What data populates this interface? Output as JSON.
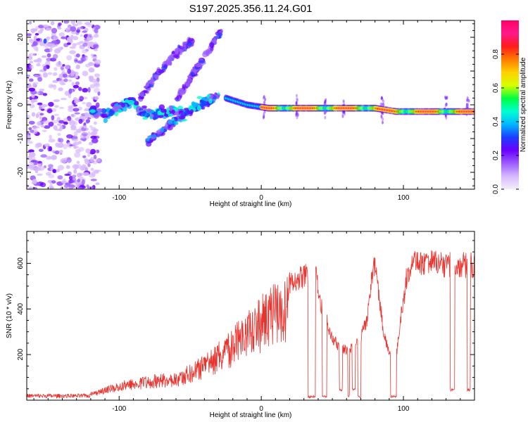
{
  "title": "S197.2025.356.11.24.G01",
  "chart_data": [
    {
      "type": "heatmap",
      "name": "spectrogram",
      "xlabel": "Height of straight line (km)",
      "ylabel": "Frequency (Hz)",
      "xlim": [
        -165,
        150
      ],
      "ylim": [
        -25,
        25
      ],
      "xticks": [
        -100,
        0,
        100
      ],
      "xtick_labels": [
        "-100",
        "0",
        "100"
      ],
      "yticks": [
        -20,
        -10,
        0,
        10,
        20
      ],
      "ytick_labels": [
        "-20",
        "-10",
        "0",
        "10",
        "20"
      ],
      "colorbar": {
        "label": "Normalized spectral amplitude",
        "range": [
          0,
          1
        ],
        "ticks": [
          0,
          0.2,
          0.4,
          0.6,
          0.8
        ],
        "tick_labels": [
          "0.0",
          "0.2",
          "0.4",
          "0.6",
          "0.8"
        ],
        "colors": [
          "#f3eefb",
          "#d7b8ff",
          "#9b5cff",
          "#6a00ff",
          "#1b3dff",
          "#00b8ff",
          "#00ffd0",
          "#00ff40",
          "#d8ff00",
          "#ffd000",
          "#ff7a00",
          "#ff1a1a",
          "#ff1a8c",
          "#ff0066"
        ]
      },
      "features": {
        "noise_region_x": [
          -165,
          -120
        ],
        "carrier_line": [
          [
            -25,
            2
          ],
          [
            -10,
            0
          ],
          [
            5,
            -1
          ],
          [
            20,
            -1
          ],
          [
            40,
            -1
          ],
          [
            60,
            -1
          ],
          [
            80,
            -1
          ],
          [
            95,
            -2
          ],
          [
            110,
            -2
          ],
          [
            130,
            -2
          ],
          [
            150,
            -2
          ]
        ],
        "scintillation_band": [
          [
            -120,
            -2
          ],
          [
            -110,
            -3
          ],
          [
            -100,
            -1
          ],
          [
            -90,
            1
          ],
          [
            -85,
            -2
          ],
          [
            -75,
            -3
          ],
          [
            -65,
            -2
          ],
          [
            -55,
            -3
          ],
          [
            -45,
            0
          ],
          [
            -35,
            2
          ]
        ],
        "rising_tracks": [
          [
            [
              -80,
              -11
            ],
            [
              -65,
              -6
            ],
            [
              -50,
              -2
            ],
            [
              -40,
              0
            ],
            [
              -30,
              3
            ]
          ],
          [
            [
              -85,
              2
            ],
            [
              -75,
              8
            ],
            [
              -65,
              13
            ],
            [
              -55,
              17
            ],
            [
              -48,
              19
            ]
          ],
          [
            [
              -60,
              1
            ],
            [
              -50,
              8
            ],
            [
              -40,
              14
            ],
            [
              -33,
              19
            ],
            [
              -28,
              22
            ]
          ]
        ],
        "vertical_streaks_x": [
          2,
          25,
          45,
          58,
          85,
          130,
          145
        ]
      }
    },
    {
      "type": "line",
      "name": "snr",
      "xlabel": "Height of straight line (km)",
      "ylabel": "SNR (10 * v/v)",
      "xlim": [
        -165,
        150
      ],
      "ylim": [
        0,
        740
      ],
      "xticks": [
        -100,
        0,
        100
      ],
      "xtick_labels": [
        "-100",
        "0",
        "100"
      ],
      "yticks": [
        200,
        400,
        600
      ],
      "ytick_labels": [
        "200",
        "400",
        "600"
      ],
      "color": "#e8332e",
      "envelope": [
        [
          -165,
          15
        ],
        [
          -150,
          15
        ],
        [
          -135,
          18
        ],
        [
          -125,
          25
        ],
        [
          -115,
          45
        ],
        [
          -105,
          70
        ],
        [
          -95,
          90
        ],
        [
          -85,
          105
        ],
        [
          -75,
          115
        ],
        [
          -65,
          120
        ],
        [
          -55,
          140
        ],
        [
          -45,
          180
        ],
        [
          -35,
          235
        ],
        [
          -25,
          290
        ],
        [
          -15,
          355
        ],
        [
          -5,
          420
        ],
        [
          5,
          500
        ],
        [
          15,
          555
        ],
        [
          25,
          580
        ],
        [
          32,
          600
        ],
        [
          38,
          620
        ],
        [
          42,
          460
        ],
        [
          46,
          380
        ],
        [
          50,
          300
        ],
        [
          55,
          255
        ],
        [
          60,
          240
        ],
        [
          65,
          260
        ],
        [
          70,
          300
        ],
        [
          74,
          380
        ],
        [
          78,
          600
        ],
        [
          80,
          650
        ],
        [
          83,
          500
        ],
        [
          86,
          330
        ],
        [
          90,
          230
        ],
        [
          94,
          150
        ],
        [
          98,
          400
        ],
        [
          100,
          470
        ],
        [
          102,
          580
        ],
        [
          105,
          650
        ],
        [
          110,
          660
        ],
        [
          120,
          660
        ],
        [
          130,
          650
        ],
        [
          140,
          650
        ],
        [
          150,
          650
        ]
      ],
      "drops": [
        [
          33,
          38,
          10
        ],
        [
          43,
          46,
          10
        ],
        [
          55,
          57,
          40
        ],
        [
          61,
          62,
          15
        ],
        [
          64,
          66,
          40
        ],
        [
          68,
          70,
          10
        ],
        [
          91,
          95,
          10
        ],
        [
          133,
          136,
          40
        ],
        [
          145,
          147,
          40
        ]
      ]
    }
  ]
}
